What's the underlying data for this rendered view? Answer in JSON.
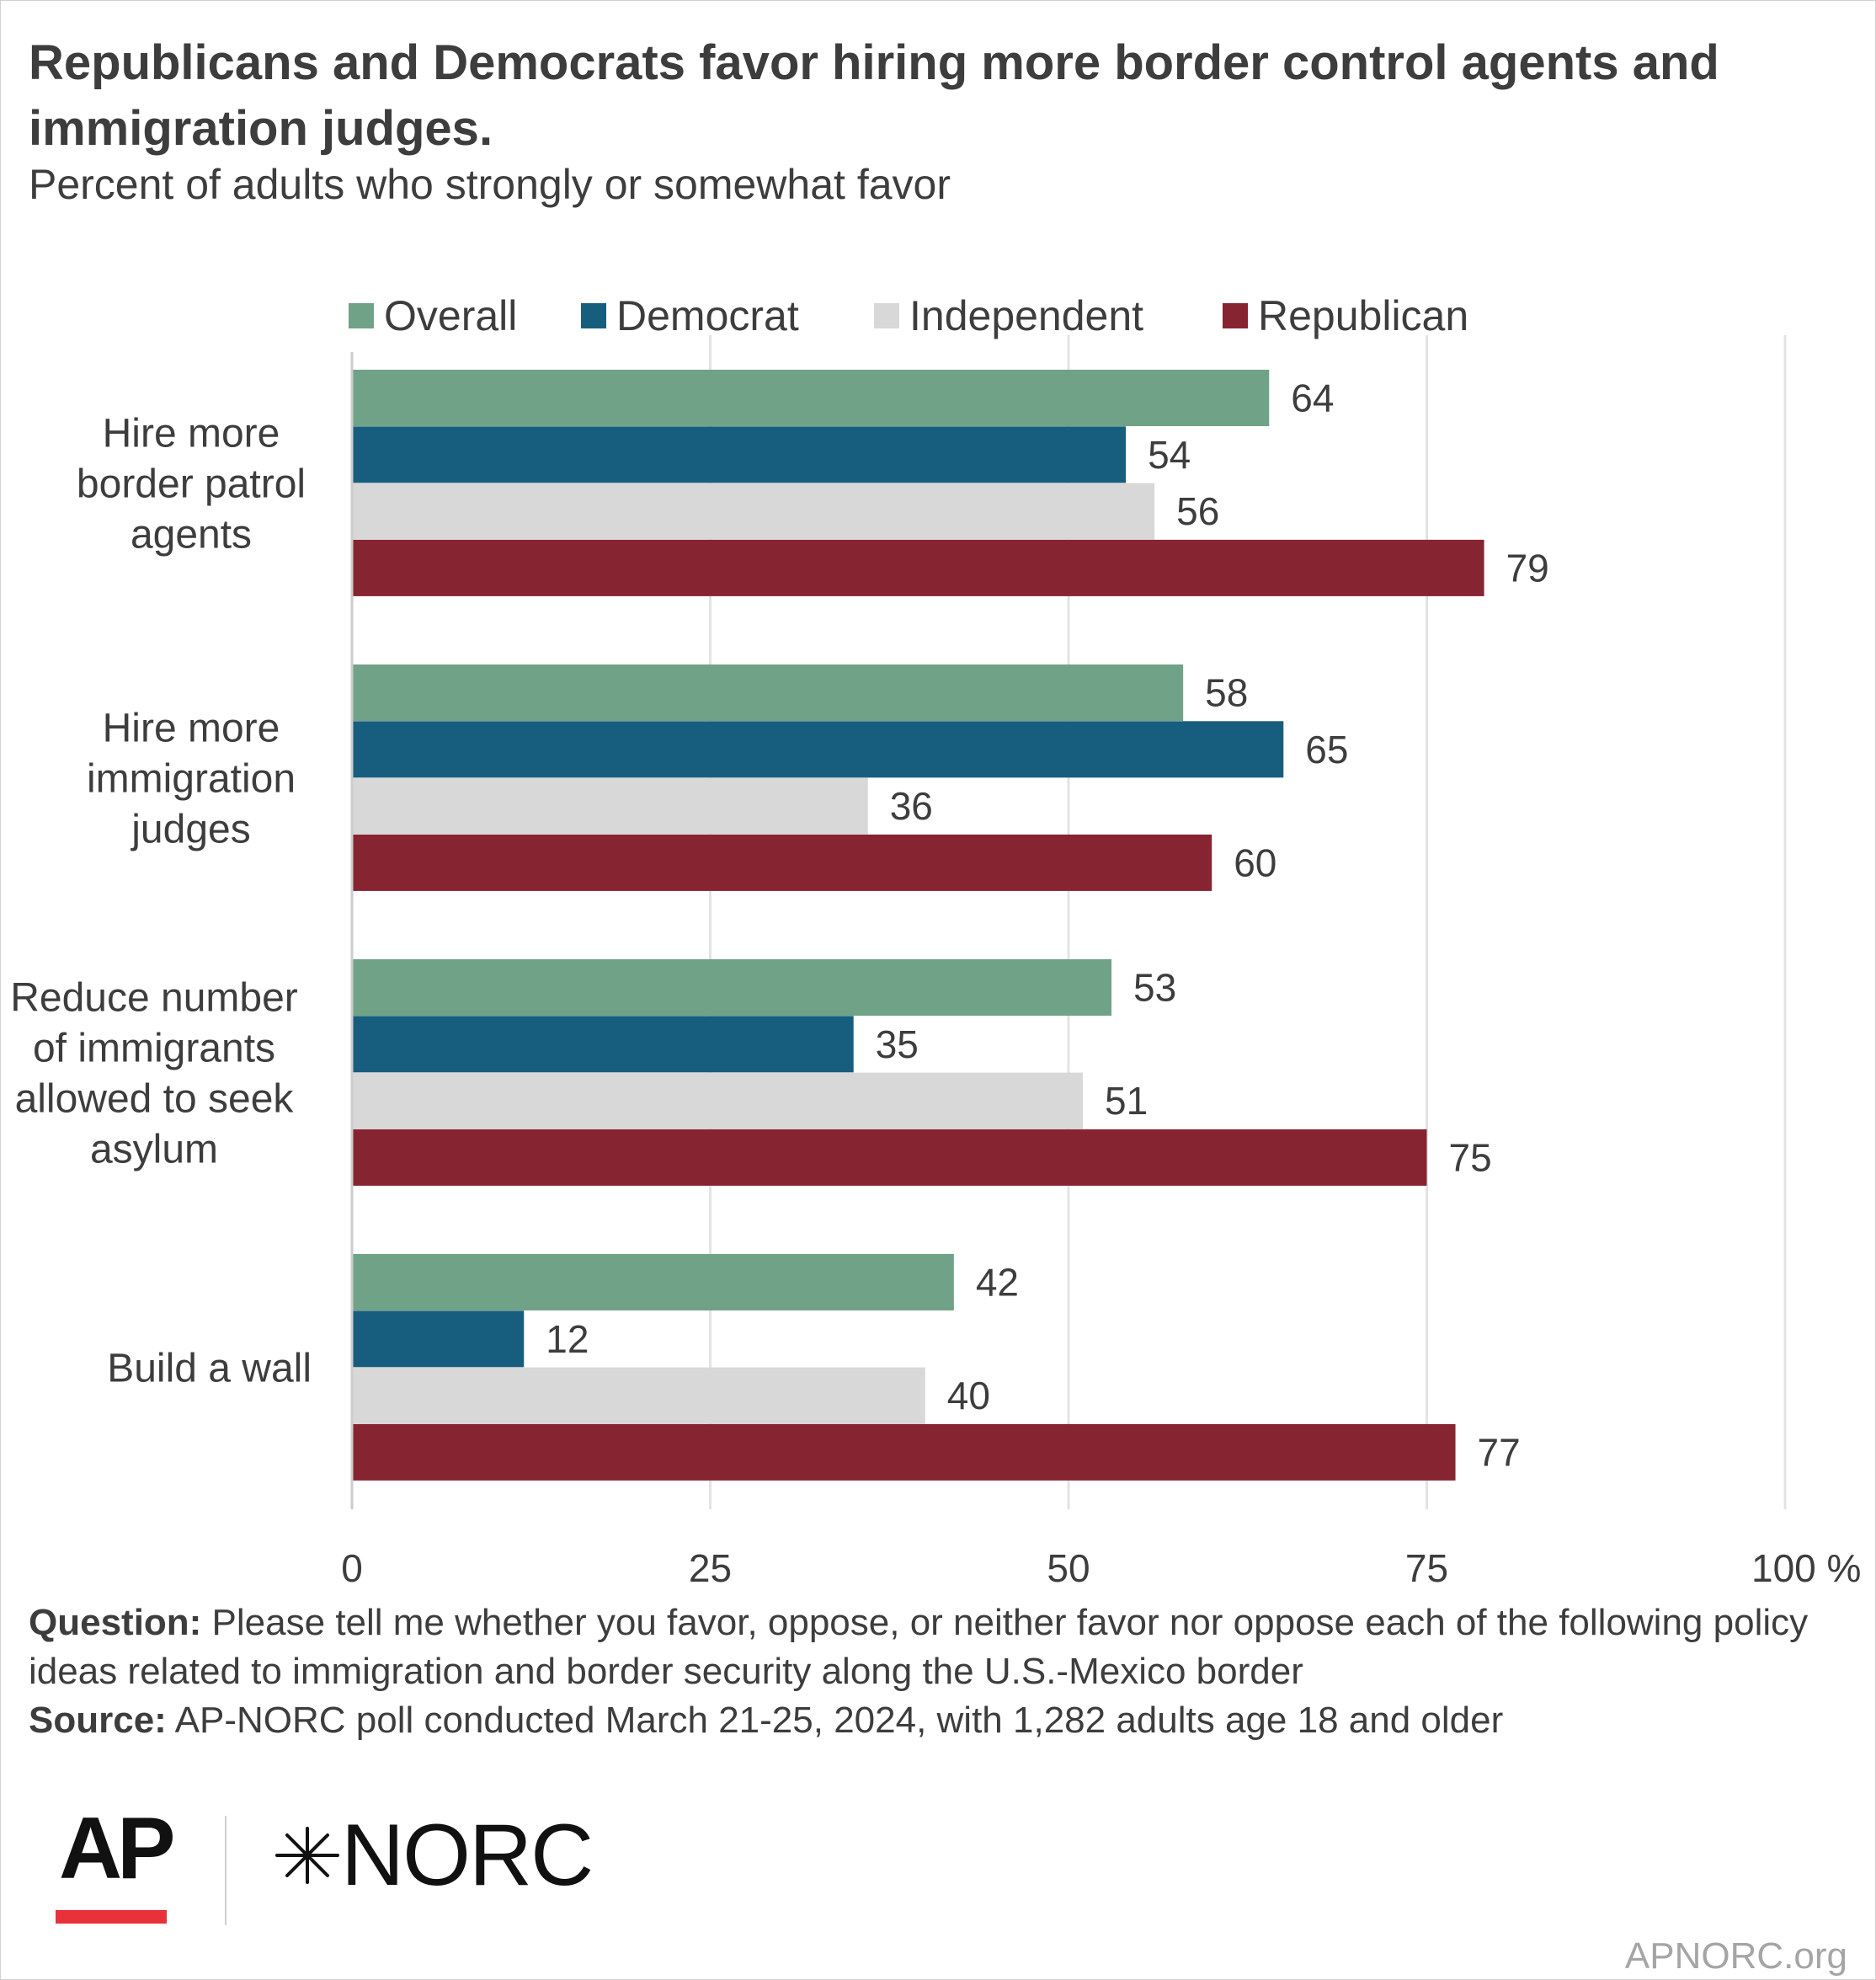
{
  "header": {
    "title": "Republicans and Democrats favor hiring more border control agents and immigration judges.",
    "subtitle": "Percent of adults who strongly or somewhat favor"
  },
  "chart_data": {
    "type": "bar",
    "orientation": "horizontal",
    "categories": [
      "Hire more border patrol agents",
      "Hire more immigration judges",
      "Reduce number of immigrants allowed to seek asylum",
      "Build a wall"
    ],
    "category_lines": [
      [
        "Hire more",
        "border patrol",
        "agents"
      ],
      [
        "Hire more",
        "immigration",
        "judges"
      ],
      [
        "Reduce number",
        "of immigrants",
        "allowed to seek",
        "asylum"
      ],
      [
        "Build a wall"
      ]
    ],
    "series": [
      {
        "name": "Overall",
        "color": "#70a287",
        "values": [
          64,
          58,
          53,
          42
        ]
      },
      {
        "name": "Democrat",
        "color": "#175e7e",
        "values": [
          54,
          65,
          35,
          12
        ]
      },
      {
        "name": "Independent",
        "color": "#d8d8d8",
        "values": [
          56,
          36,
          51,
          40
        ]
      },
      {
        "name": "Republican",
        "color": "#862432",
        "values": [
          79,
          60,
          75,
          77
        ]
      }
    ],
    "xlim": [
      0,
      100
    ],
    "xticks": [
      "0",
      "25",
      "50",
      "75",
      "100 %"
    ],
    "xtick_values": [
      0,
      25,
      50,
      75,
      100
    ],
    "grid": true,
    "legend_position": "top",
    "data_labels": true
  },
  "notes": {
    "question_label": "Question:",
    "question_text": " Please tell me whether you favor, oppose, or neither favor nor oppose each of the following policy ideas related to immigration and border security along the U.S.-Mexico border",
    "source_label": "Source:",
    "source_text": " AP-NORC poll conducted March 21-25, 2024, with 1,282 adults age 18 and older"
  },
  "branding": {
    "ap_logo": "AP",
    "ap_accent_color": "#e8313a",
    "norc_logo": "NORC",
    "norc_icon": "star-burst-icon",
    "site": "APNORC.org"
  }
}
